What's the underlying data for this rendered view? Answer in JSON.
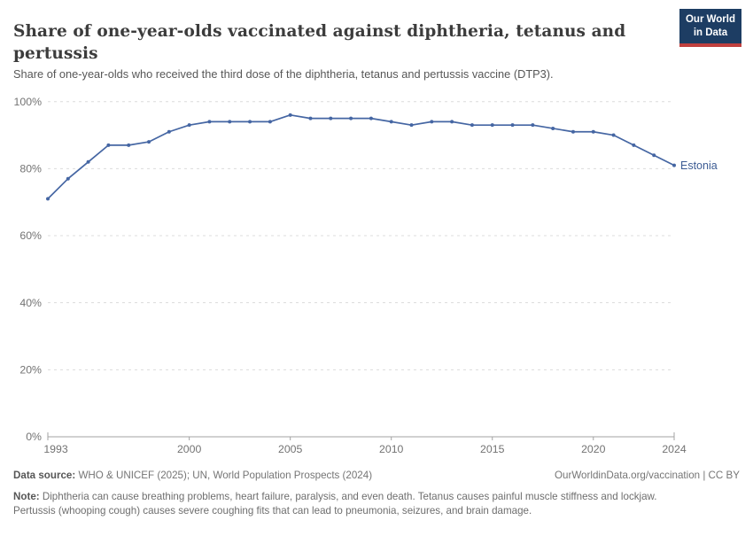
{
  "header": {
    "title": "Share of one-year-olds vaccinated against diphtheria, tetanus and pertussis",
    "subtitle": "Share of one-year-olds who received the third dose of the diphtheria, tetanus and pertussis vaccine (DTP3).",
    "logo_line1": "Our World",
    "logo_line2": "in Data"
  },
  "colors": {
    "line": "#4566a3",
    "end_label": "#3d5c94",
    "gridline": "#dcdcdc",
    "axis": "#a3a3a3",
    "tick_label": "#737373",
    "logo_bg": "#1d3d63",
    "logo_red": "#c0403e"
  },
  "chart_data": {
    "type": "line",
    "title": "Share of one-year-olds vaccinated against diphtheria, tetanus and pertussis",
    "x": [
      1993,
      1994,
      1995,
      1996,
      1997,
      1998,
      1999,
      2000,
      2001,
      2002,
      2003,
      2004,
      2005,
      2006,
      2007,
      2008,
      2009,
      2010,
      2011,
      2012,
      2013,
      2014,
      2015,
      2016,
      2017,
      2018,
      2019,
      2020,
      2021,
      2022,
      2023,
      2024
    ],
    "series": [
      {
        "name": "Estonia",
        "color": "#4566a3",
        "values": [
          71,
          77,
          82,
          87,
          87,
          88,
          91,
          93,
          94,
          94,
          94,
          94,
          96,
          95,
          95,
          95,
          95,
          94,
          93,
          94,
          94,
          93,
          93,
          93,
          93,
          92,
          91,
          91,
          90,
          87,
          84,
          81
        ]
      }
    ],
    "xlim": [
      1993,
      2024
    ],
    "ylim": [
      0,
      100
    ],
    "x_ticks": [
      1993,
      2000,
      2005,
      2010,
      2015,
      2020,
      2024
    ],
    "y_ticks": [
      0,
      20,
      40,
      60,
      80,
      100
    ],
    "y_suffix": "%",
    "grid": "horizontal-dashed",
    "legend_position": "end-of-line",
    "end_label": "Estonia"
  },
  "footer": {
    "datasource_label": "Data source:",
    "datasource_text": " WHO & UNICEF (2025); UN, World Population Prospects (2024)",
    "attribution": "OurWorldinData.org/vaccination | CC BY",
    "note_label": "Note:",
    "note_text": " Diphtheria can cause breathing problems, heart failure, paralysis, and even death. Tetanus causes painful muscle stiffness and lockjaw. Pertussis (whooping cough) causes severe coughing fits that can lead to pneumonia, seizures, and brain damage."
  }
}
